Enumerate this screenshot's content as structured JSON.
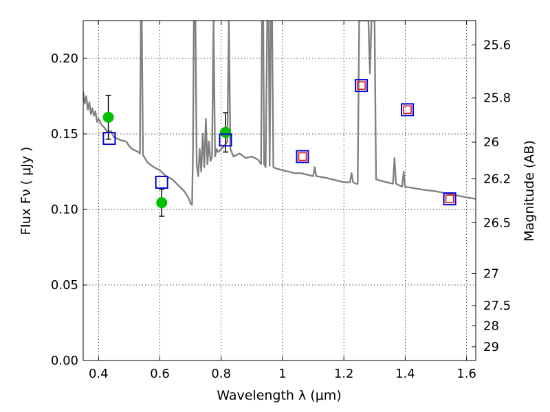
{
  "chart_data": {
    "type": "scatter",
    "title": "",
    "xlabel": "Wavelength  λ (μm)",
    "ylabel": "Flux  Fν  ( μJy )",
    "ylabel_right": "Magnitude (AB)",
    "xlim": [
      0.35,
      1.63
    ],
    "ylim": [
      0.0,
      0.225
    ],
    "grid": true,
    "x_ticks": [
      {
        "value": 0.4,
        "label": "0.4"
      },
      {
        "value": 0.6,
        "label": "0.6"
      },
      {
        "value": 0.8,
        "label": "0.8"
      },
      {
        "value": 1.0,
        "label": "1"
      },
      {
        "value": 1.2,
        "label": "1.2"
      },
      {
        "value": 1.4,
        "label": "1.4"
      },
      {
        "value": 1.6,
        "label": "1.6"
      }
    ],
    "y_ticks": [
      {
        "value": 0.0,
        "label": "0.00"
      },
      {
        "value": 0.05,
        "label": "0.05"
      },
      {
        "value": 0.1,
        "label": "0.10"
      },
      {
        "value": 0.15,
        "label": "0.15"
      },
      {
        "value": 0.2,
        "label": "0.20"
      }
    ],
    "right_ticks": [
      {
        "value": 25.6,
        "label": "25.6"
      },
      {
        "value": 25.8,
        "label": "25.8"
      },
      {
        "value": 26.0,
        "label": "26"
      },
      {
        "value": 26.2,
        "label": "26.2"
      },
      {
        "value": 26.5,
        "label": "26.5"
      },
      {
        "value": 27.0,
        "label": "27"
      },
      {
        "value": 27.5,
        "label": "27.5"
      },
      {
        "value": 28.0,
        "label": "28"
      },
      {
        "value": 29.0,
        "label": "29"
      }
    ],
    "series": [
      {
        "kind": "line",
        "color": "#808080",
        "points": [
          [
            0.35,
            0.178
          ],
          [
            0.355,
            0.17
          ],
          [
            0.36,
            0.175
          ],
          [
            0.365,
            0.166
          ],
          [
            0.37,
            0.171
          ],
          [
            0.375,
            0.163
          ],
          [
            0.38,
            0.167
          ],
          [
            0.385,
            0.162
          ],
          [
            0.39,
            0.165
          ],
          [
            0.395,
            0.158
          ],
          [
            0.4,
            0.16
          ],
          [
            0.41,
            0.156
          ],
          [
            0.42,
            0.154
          ],
          [
            0.43,
            0.151
          ],
          [
            0.44,
            0.152
          ],
          [
            0.45,
            0.148
          ],
          [
            0.47,
            0.146
          ],
          [
            0.49,
            0.145
          ],
          [
            0.5,
            0.142
          ],
          [
            0.51,
            0.14
          ],
          [
            0.52,
            0.139
          ],
          [
            0.53,
            0.138
          ],
          [
            0.535,
            0.137
          ],
          [
            0.538,
            0.225
          ],
          [
            0.541,
            0.225
          ],
          [
            0.545,
            0.136
          ],
          [
            0.56,
            0.131
          ],
          [
            0.58,
            0.128
          ],
          [
            0.6,
            0.126
          ],
          [
            0.62,
            0.122
          ],
          [
            0.64,
            0.12
          ],
          [
            0.66,
            0.116
          ],
          [
            0.68,
            0.112
          ],
          [
            0.695,
            0.107
          ],
          [
            0.7,
            0.104
          ],
          [
            0.705,
            0.103
          ],
          [
            0.708,
            0.14
          ],
          [
            0.711,
            0.225
          ],
          [
            0.716,
            0.225
          ],
          [
            0.72,
            0.13
          ],
          [
            0.725,
            0.122
          ],
          [
            0.73,
            0.14
          ],
          [
            0.735,
            0.125
          ],
          [
            0.74,
            0.15
          ],
          [
            0.745,
            0.128
          ],
          [
            0.75,
            0.16
          ],
          [
            0.755,
            0.13
          ],
          [
            0.76,
            0.145
          ],
          [
            0.765,
            0.132
          ],
          [
            0.77,
            0.135
          ],
          [
            0.775,
            0.225
          ],
          [
            0.78,
            0.135
          ],
          [
            0.785,
            0.14
          ],
          [
            0.79,
            0.138
          ],
          [
            0.8,
            0.14
          ],
          [
            0.81,
            0.142
          ],
          [
            0.82,
            0.145
          ],
          [
            0.825,
            0.225
          ],
          [
            0.83,
            0.14
          ],
          [
            0.84,
            0.135
          ],
          [
            0.86,
            0.137
          ],
          [
            0.88,
            0.134
          ],
          [
            0.9,
            0.135
          ],
          [
            0.92,
            0.133
          ],
          [
            0.93,
            0.13
          ],
          [
            0.933,
            0.225
          ],
          [
            0.937,
            0.225
          ],
          [
            0.94,
            0.13
          ],
          [
            0.945,
            0.128
          ],
          [
            0.95,
            0.225
          ],
          [
            0.955,
            0.225
          ],
          [
            0.958,
            0.129
          ],
          [
            0.962,
            0.225
          ],
          [
            0.966,
            0.225
          ],
          [
            0.97,
            0.128
          ],
          [
            0.98,
            0.127
          ],
          [
            1.0,
            0.126
          ],
          [
            1.02,
            0.125
          ],
          [
            1.04,
            0.124
          ],
          [
            1.06,
            0.124
          ],
          [
            1.08,
            0.123
          ],
          [
            1.1,
            0.122
          ],
          [
            1.105,
            0.128
          ],
          [
            1.11,
            0.122
          ],
          [
            1.14,
            0.121
          ],
          [
            1.16,
            0.12
          ],
          [
            1.18,
            0.119
          ],
          [
            1.2,
            0.118
          ],
          [
            1.22,
            0.118
          ],
          [
            1.225,
            0.124
          ],
          [
            1.23,
            0.118
          ],
          [
            1.24,
            0.117
          ],
          [
            1.245,
            0.117
          ],
          [
            1.25,
            0.225
          ],
          [
            1.28,
            0.225
          ],
          [
            1.285,
            0.19
          ],
          [
            1.29,
            0.225
          ],
          [
            1.3,
            0.225
          ],
          [
            1.305,
            0.12
          ],
          [
            1.32,
            0.119
          ],
          [
            1.34,
            0.118
          ],
          [
            1.36,
            0.117
          ],
          [
            1.365,
            0.134
          ],
          [
            1.37,
            0.117
          ],
          [
            1.38,
            0.116
          ],
          [
            1.39,
            0.115
          ],
          [
            1.395,
            0.125
          ],
          [
            1.4,
            0.115
          ],
          [
            1.43,
            0.114
          ],
          [
            1.46,
            0.113
          ],
          [
            1.5,
            0.112
          ],
          [
            1.55,
            0.11
          ],
          [
            1.6,
            0.108
          ],
          [
            1.63,
            0.107
          ]
        ]
      },
      {
        "kind": "points",
        "marker": "circle",
        "color": "#00c000",
        "points": [
          {
            "x": 0.432,
            "y": 0.161,
            "err": 0.0145
          },
          {
            "x": 0.606,
            "y": 0.1045,
            "err": 0.009
          },
          {
            "x": 0.814,
            "y": 0.151,
            "err": 0.013
          }
        ]
      },
      {
        "kind": "points",
        "marker": "square-open",
        "color": "#0000e0",
        "points": [
          {
            "x": 0.435,
            "y": 0.147
          },
          {
            "x": 0.606,
            "y": 0.118
          },
          {
            "x": 0.814,
            "y": 0.146
          },
          {
            "x": 1.065,
            "y": 0.135
          },
          {
            "x": 1.257,
            "y": 0.182
          },
          {
            "x": 1.407,
            "y": 0.166
          },
          {
            "x": 1.545,
            "y": 0.107
          }
        ]
      },
      {
        "kind": "points",
        "marker": "square-small-open",
        "color": "#e00000",
        "points": [
          {
            "x": 1.065,
            "y": 0.135
          },
          {
            "x": 1.257,
            "y": 0.182
          },
          {
            "x": 1.407,
            "y": 0.166
          },
          {
            "x": 1.545,
            "y": 0.107
          }
        ]
      }
    ]
  }
}
